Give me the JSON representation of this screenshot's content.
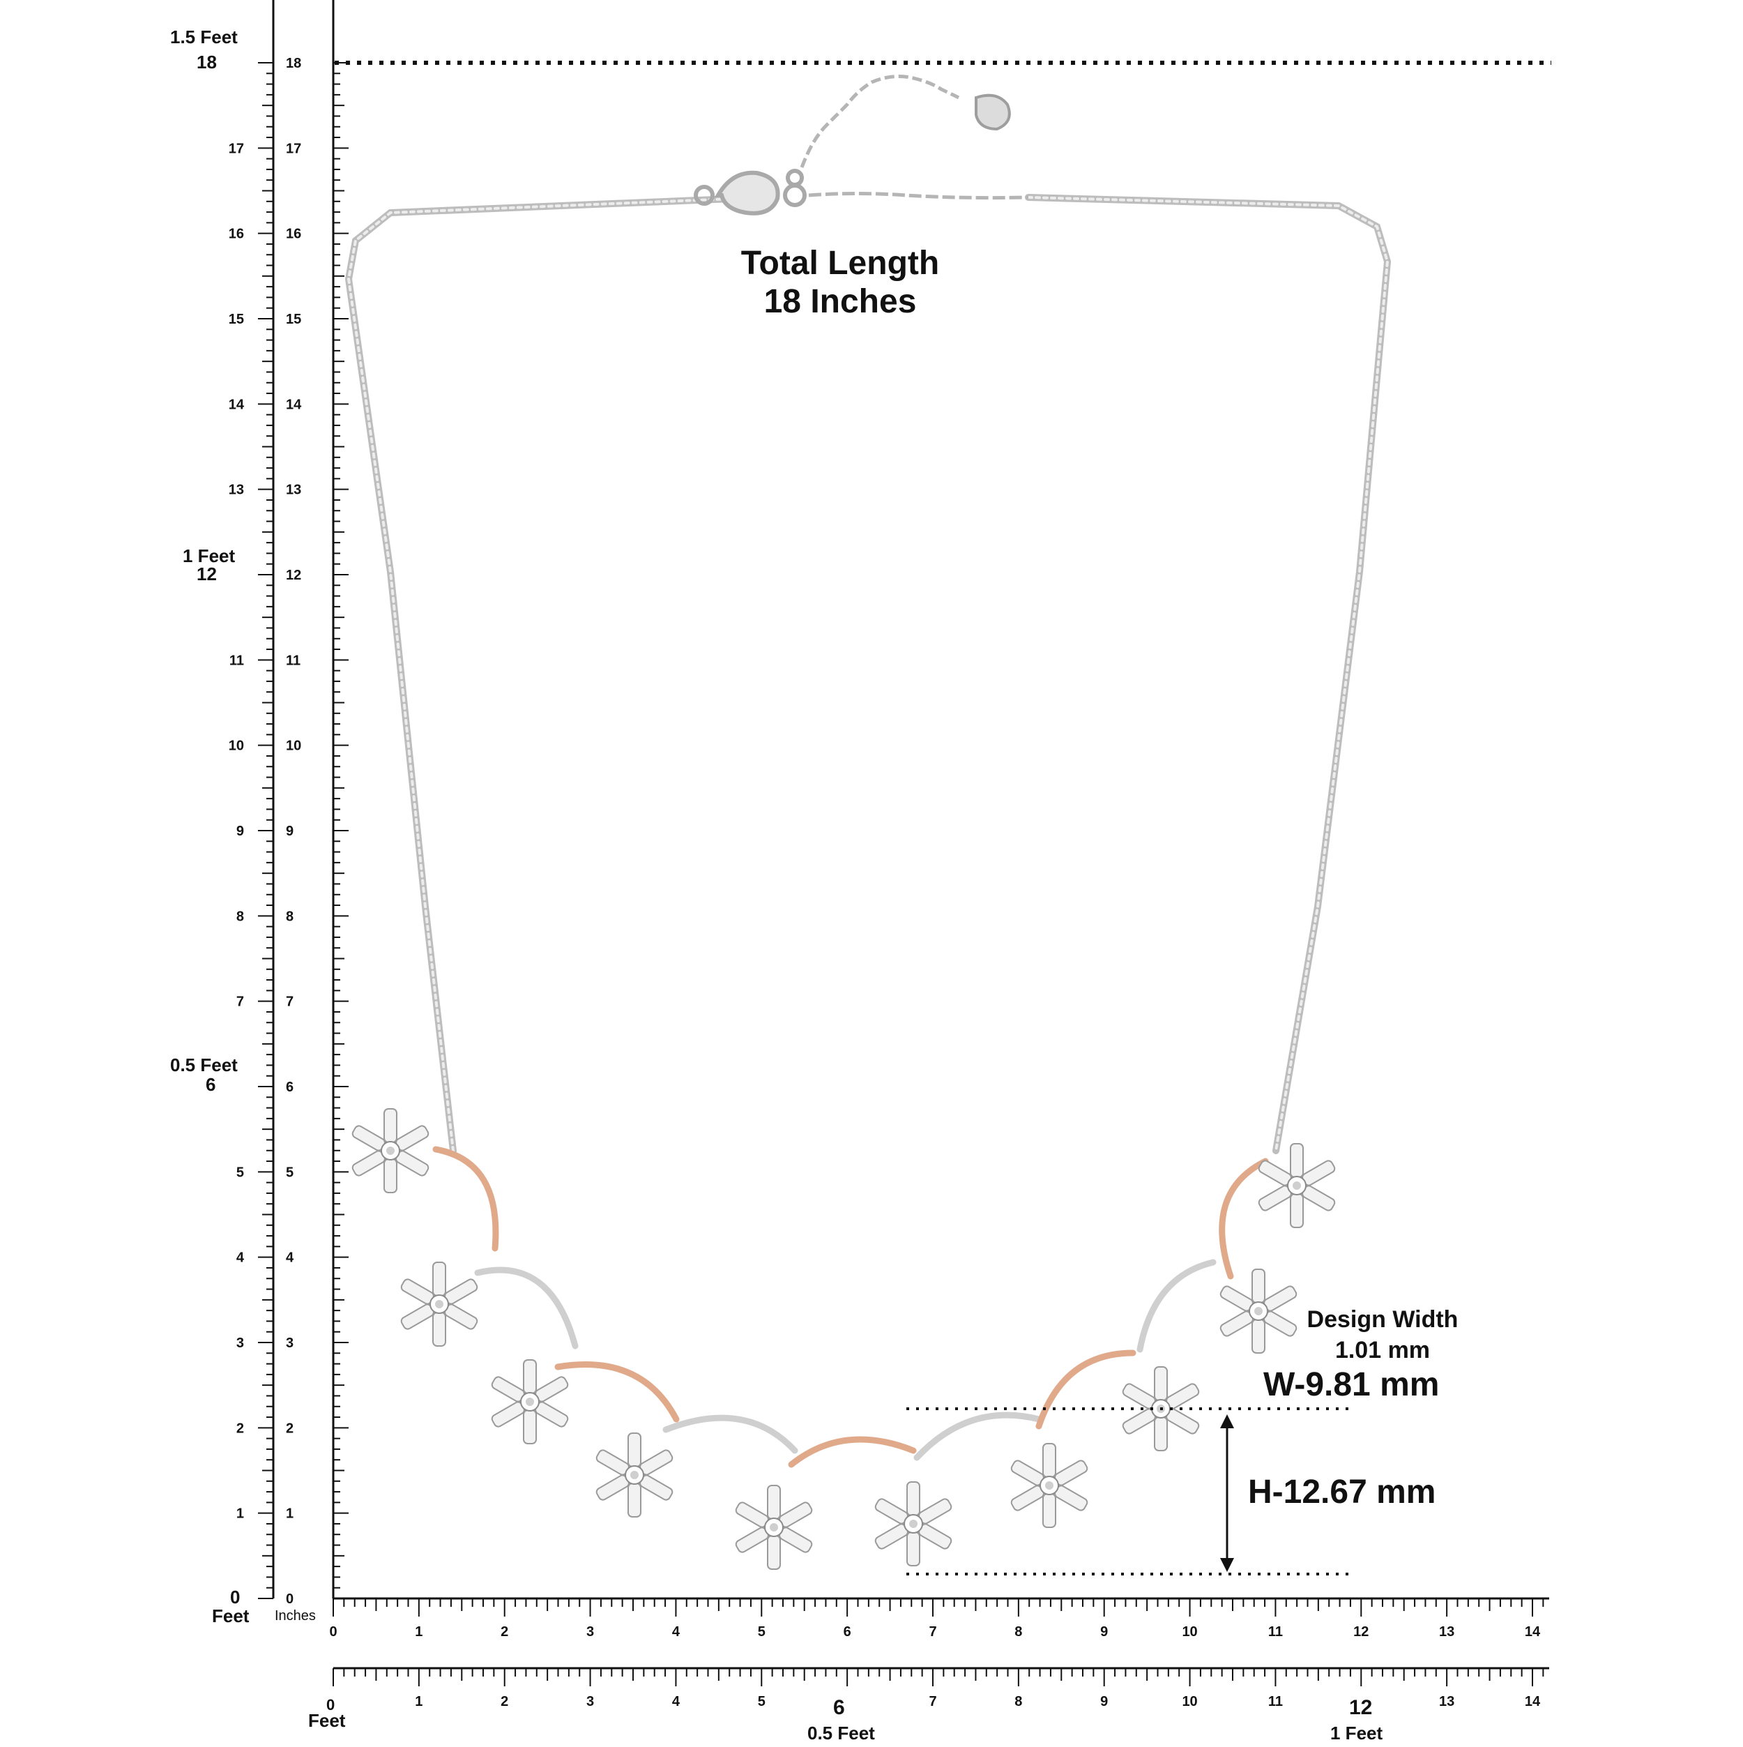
{
  "measure": {
    "total_length_line1": "Total Length",
    "total_length_line2": "18 Inches",
    "design_width_line1": "Design Width",
    "design_width_line2": "1.01 mm",
    "width": "W-9.81 mm",
    "height": "H-12.67 mm"
  },
  "left_ruler": {
    "feet_labels": [
      "1.5 Feet",
      "1 Feet",
      "0.5 Feet"
    ],
    "zero_label": "0",
    "feet_unit": "Feet",
    "inches_unit": "Inches",
    "outer_numbers": [
      "17",
      "16",
      "15",
      "14",
      "13",
      "11",
      "10",
      "9",
      "8",
      "7",
      "5",
      "4",
      "3",
      "2",
      "1"
    ],
    "outer_major": [
      "18",
      "12",
      "6"
    ],
    "inner_numbers": [
      "18",
      "17",
      "16",
      "15",
      "14",
      "13",
      "12",
      "11",
      "10",
      "9",
      "8",
      "7",
      "6",
      "5",
      "4",
      "3",
      "2",
      "1",
      "0"
    ]
  },
  "bottom_ruler_1": {
    "numbers": [
      "0",
      "1",
      "2",
      "3",
      "4",
      "5",
      "6",
      "7",
      "8",
      "9",
      "10",
      "11",
      "12",
      "13",
      "14"
    ]
  },
  "bottom_ruler_2": {
    "zero_label": "0",
    "feet_unit": "Feet",
    "numbers": [
      "1",
      "2",
      "3",
      "4",
      "5",
      "7",
      "8",
      "9",
      "10",
      "11",
      "13",
      "14"
    ],
    "major_numbers": [
      "6",
      "12"
    ],
    "half_foot_label": "0.5 Feet",
    "one_foot_label": "1 Feet"
  },
  "colors": {
    "silver": "#c9c9c9",
    "rose_gold": "#e0a98a",
    "ink": "#111111"
  }
}
